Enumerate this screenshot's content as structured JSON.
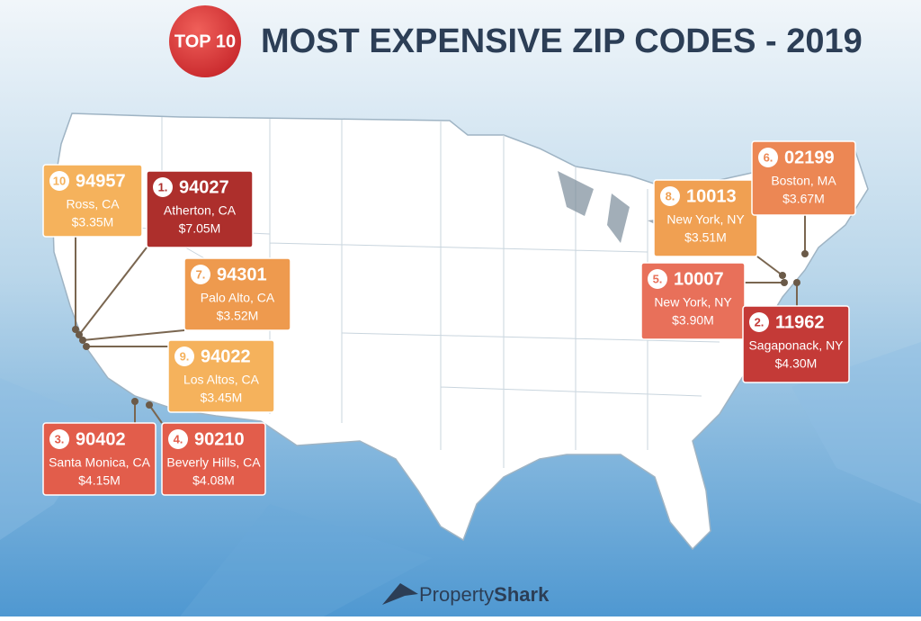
{
  "header": {
    "badge": "TOP 10",
    "title": "MOST EXPENSIVE ZIP CODES - 2019"
  },
  "callouts": [
    {
      "rank": "10",
      "zip": "94957",
      "place": "Ross, CA",
      "price": "$3.35M",
      "color": "#f5b25c"
    },
    {
      "rank": "1.",
      "zip": "94027",
      "place": "Atherton, CA",
      "price": "$7.05M",
      "color": "#ad2f2c"
    },
    {
      "rank": "7.",
      "zip": "94301",
      "place": "Palo Alto, CA",
      "price": "$3.52M",
      "color": "#ee9a4e"
    },
    {
      "rank": "9.",
      "zip": "94022",
      "place": "Los Altos, CA",
      "price": "$3.45M",
      "color": "#f5b25c"
    },
    {
      "rank": "3.",
      "zip": "90402",
      "place": "Santa Monica, CA",
      "price": "$4.15M",
      "color": "#e25d4b"
    },
    {
      "rank": "4.",
      "zip": "90210",
      "place": "Beverly Hills, CA",
      "price": "$4.08M",
      "color": "#e25d4b"
    },
    {
      "rank": "8.",
      "zip": "10013",
      "place": "New York, NY",
      "price": "$3.51M",
      "color": "#f0a052"
    },
    {
      "rank": "6.",
      "zip": "02199",
      "place": "Boston, MA",
      "price": "$3.67M",
      "color": "#ec8754"
    },
    {
      "rank": "5.",
      "zip": "10007",
      "place": "New York, NY",
      "price": "$3.90M",
      "color": "#e8705a"
    },
    {
      "rank": "2.",
      "zip": "11962",
      "place": "Sagaponack, NY",
      "price": "$4.30M",
      "color": "#c43a37"
    }
  ],
  "footer": {
    "brand_light": "Property",
    "brand_bold": "Shark"
  }
}
